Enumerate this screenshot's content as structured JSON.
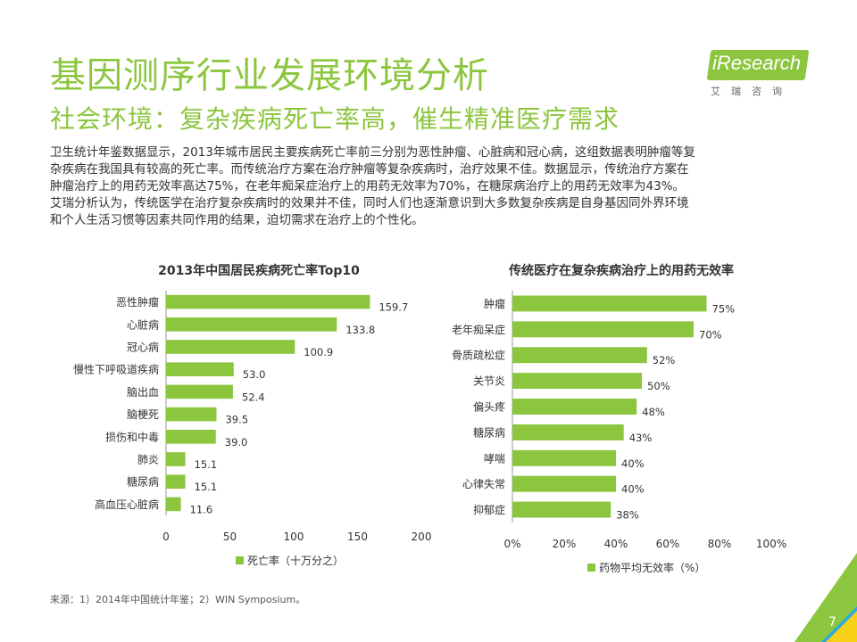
{
  "header": {
    "title": "基因测序行业发展环境分析",
    "subtitle": "社会环境：复杂疾病死亡率高，催生精准医疗需求"
  },
  "logo": {
    "text": "iResearch",
    "cn": "艾瑞咨询"
  },
  "paragraph": [
    "卫生统计年鉴数据显示，2013年城市居民主要疾病死亡率前三分别为恶性肿瘤、心脏病和冠心病，这组数据表明肿瘤等复",
    "杂疾病在我国具有较高的死亡率。而传统治疗方案在治疗肿瘤等复杂疾病时，治疗效果不佳。数据显示，传统治疗方案在",
    "肿瘤治疗上的用药无效率高达75%，在老年痴呆症治疗上的用药无效率为70%，在糖尿病治疗上的用药无效率为43%。",
    "艾瑞分析认为，传统医学在治疗复杂疾病时的效果并不佳，同时人们也逐渐意识到大多数复杂疾病是自身基因同外界环境",
    "和个人生活习惯等因素共同作用的结果，迫切需求在治疗上的个性化。"
  ],
  "colors": {
    "accent": "#8CC63F",
    "deco_blue": "#29ABE2",
    "deco_yellow": "#F7D117",
    "text": "#333333"
  },
  "chart_data": [
    {
      "type": "bar",
      "orientation": "horizontal",
      "title": "2013年中国居民疾病死亡率Top10",
      "categories": [
        "恶性肿瘤",
        "心脏病",
        "冠心病",
        "慢性下呼吸道疾病",
        "脑出血",
        "脑梗死",
        "损伤和中毒",
        "肺炎",
        "糖尿病",
        "高血压心脏病"
      ],
      "values": [
        159.7,
        133.8,
        100.9,
        53.0,
        52.4,
        39.5,
        39.0,
        15.1,
        15.1,
        11.6
      ],
      "value_labels": [
        "159.7",
        "133.8",
        "100.9",
        "53.0",
        "52.4",
        "39.5",
        "39.0",
        "15.1",
        "15.1",
        "11.6"
      ],
      "xlim": [
        0,
        200
      ],
      "ticks": [
        "0",
        "50",
        "100",
        "150",
        "200"
      ],
      "tick_values": [
        0,
        50,
        100,
        150,
        200
      ],
      "legend": "死亡率（十万分之）",
      "grid": false
    },
    {
      "type": "bar",
      "orientation": "horizontal",
      "title": "传统医疗在复杂疾病治疗上的用药无效率",
      "categories": [
        "肿瘤",
        "老年痴呆症",
        "骨质疏松症",
        "关节炎",
        "偏头疼",
        "糖尿病",
        "哮喘",
        "心律失常",
        "抑郁症"
      ],
      "values": [
        75,
        70,
        52,
        50,
        48,
        43,
        40,
        40,
        38
      ],
      "value_labels": [
        "75%",
        "70%",
        "52%",
        "50%",
        "48%",
        "43%",
        "40%",
        "40%",
        "38%"
      ],
      "xlim": [
        0,
        100
      ],
      "ticks": [
        "0%",
        "20%",
        "40%",
        "60%",
        "80%",
        "100%"
      ],
      "tick_values": [
        0,
        20,
        40,
        60,
        80,
        100
      ],
      "legend": "药物平均无效率（%）",
      "grid": false
    }
  ],
  "footer": {
    "source": "来源：1）2014年中国统计年鉴；2）WIN Symposium。",
    "page_number": "7"
  }
}
